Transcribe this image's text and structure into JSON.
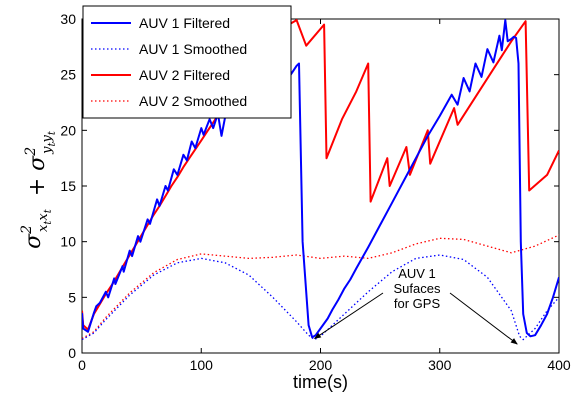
{
  "chart_data": {
    "type": "line",
    "xlabel": "time(s)",
    "ylabel_latex": "σ²_{x_t x_t} + σ²_{y_t y_t}",
    "xlim": [
      0,
      400
    ],
    "ylim": [
      0,
      30
    ],
    "xticks": [
      0,
      100,
      200,
      300,
      400
    ],
    "yticks": [
      0,
      5,
      10,
      15,
      20,
      25,
      30
    ],
    "grid": false,
    "legend_position": "top-left",
    "colors": {
      "blue": "#0000ff",
      "red": "#ff0000"
    },
    "series": [
      {
        "name": "AUV 1 Filtered",
        "color": "#0000ff",
        "style": "solid",
        "x": [
          0,
          1,
          5,
          10,
          12,
          15,
          20,
          22,
          27,
          28,
          34,
          35,
          40,
          42,
          47,
          49,
          55,
          57,
          63,
          65,
          70,
          72,
          77,
          80,
          85,
          88,
          92,
          95,
          100,
          102,
          107,
          110,
          114,
          117,
          122,
          124,
          128,
          130,
          135,
          137,
          142,
          145,
          150,
          152,
          157,
          160,
          165,
          167,
          172,
          175,
          180,
          182,
          185,
          190,
          193,
          196,
          200,
          206,
          210,
          215,
          220,
          225,
          230,
          240,
          250,
          260,
          270,
          280,
          290,
          300,
          310,
          315,
          320,
          325,
          330,
          335,
          340,
          345,
          350,
          352,
          355,
          357,
          360,
          362,
          364,
          366,
          368,
          370,
          373,
          376,
          380,
          385,
          390,
          395,
          400
        ],
        "y": [
          3.6,
          2.2,
          1.9,
          3.6,
          4.2,
          4.5,
          5.5,
          5.0,
          6.7,
          6.2,
          7.8,
          7.3,
          9.2,
          8.7,
          10.5,
          10.0,
          12.0,
          11.6,
          13.8,
          13.2,
          15.0,
          14.6,
          16.5,
          16.0,
          17.8,
          17.3,
          19.0,
          18.4,
          20.2,
          19.6,
          21.0,
          20.2,
          21.5,
          19.5,
          22.3,
          21.2,
          23.0,
          21.8,
          23.7,
          22.5,
          24.3,
          23.1,
          24.8,
          23.7,
          25.3,
          24.2,
          25.7,
          24.7,
          25.9,
          25.0,
          25.8,
          26.0,
          10.0,
          2.5,
          1.4,
          1.6,
          2.2,
          3.1,
          3.9,
          4.8,
          5.8,
          6.6,
          7.6,
          9.5,
          11.5,
          13.5,
          15.5,
          17.5,
          19.5,
          21.3,
          23.2,
          22.3,
          24.7,
          23.5,
          26.0,
          24.8,
          27.3,
          26.1,
          28.5,
          27.2,
          29.9,
          28.0,
          28.2,
          28.4,
          28.3,
          26.0,
          10.0,
          3.5,
          1.8,
          1.5,
          1.6,
          2.5,
          3.5,
          5.0,
          6.8
        ]
      },
      {
        "name": "AUV 1 Smoothed",
        "color": "#0000ff",
        "style": "dotted",
        "x": [
          0,
          10,
          20,
          40,
          60,
          80,
          100,
          120,
          140,
          160,
          180,
          190,
          195,
          200,
          220,
          240,
          260,
          280,
          300,
          320,
          340,
          360,
          367,
          370,
          380,
          390,
          400
        ],
        "y": [
          1.2,
          1.8,
          3.0,
          5.2,
          7.0,
          8.1,
          8.5,
          8.1,
          7.0,
          5.0,
          2.8,
          1.6,
          1.2,
          1.5,
          3.5,
          5.5,
          7.3,
          8.5,
          8.8,
          8.4,
          6.8,
          3.8,
          1.5,
          1.2,
          2.2,
          3.8,
          5.0
        ]
      },
      {
        "name": "AUV 2 Filtered",
        "color": "#ff0000",
        "style": "solid",
        "x": [
          0,
          1,
          5,
          10,
          15,
          20,
          25,
          30,
          35,
          40,
          45,
          50,
          55,
          60,
          65,
          70,
          75,
          80,
          85,
          90,
          95,
          100,
          105,
          110,
          115,
          120,
          125,
          130,
          135,
          140,
          145,
          150,
          155,
          160,
          165,
          170,
          175,
          180,
          188,
          203,
          205,
          218,
          230,
          240,
          242,
          256,
          258,
          272,
          275,
          290,
          292,
          312,
          315,
          330,
          345,
          360,
          372,
          375,
          390,
          400
        ],
        "y": [
          3.8,
          2.5,
          2.1,
          3.5,
          4.4,
          5.3,
          6.1,
          7.0,
          7.9,
          8.8,
          9.7,
          10.6,
          11.5,
          12.4,
          13.2,
          14.1,
          15.0,
          15.8,
          16.7,
          17.5,
          18.3,
          19.1,
          19.9,
          20.7,
          21.5,
          22.3,
          23.0,
          23.8,
          24.5,
          25.2,
          25.9,
          26.6,
          27.3,
          27.9,
          28.5,
          29.1,
          29.6,
          29.9,
          27.6,
          29.5,
          17.5,
          21.0,
          23.5,
          26.0,
          13.6,
          17.5,
          15.0,
          18.5,
          16.0,
          20.0,
          17.0,
          22.0,
          20.5,
          23.0,
          25.5,
          28.0,
          29.8,
          14.6,
          16.0,
          18.2
        ]
      },
      {
        "name": "AUV 2 Smoothed",
        "color": "#ff0000",
        "style": "dotted",
        "x": [
          0,
          10,
          20,
          40,
          60,
          80,
          100,
          120,
          140,
          160,
          180,
          200,
          220,
          240,
          260,
          280,
          300,
          320,
          340,
          360,
          380,
          400
        ],
        "y": [
          1.3,
          1.9,
          3.2,
          5.4,
          7.2,
          8.4,
          8.9,
          8.7,
          8.5,
          8.6,
          8.8,
          8.5,
          8.7,
          8.5,
          9.0,
          9.8,
          10.3,
          10.2,
          9.6,
          9.0,
          9.6,
          10.6
        ]
      }
    ],
    "annotations": [
      {
        "lines": [
          "AUV 1",
          "Sufaces",
          "for GPS"
        ],
        "arrow_targets": [
          [
            195,
            1.3
          ],
          [
            365,
            0.8
          ]
        ]
      }
    ]
  }
}
